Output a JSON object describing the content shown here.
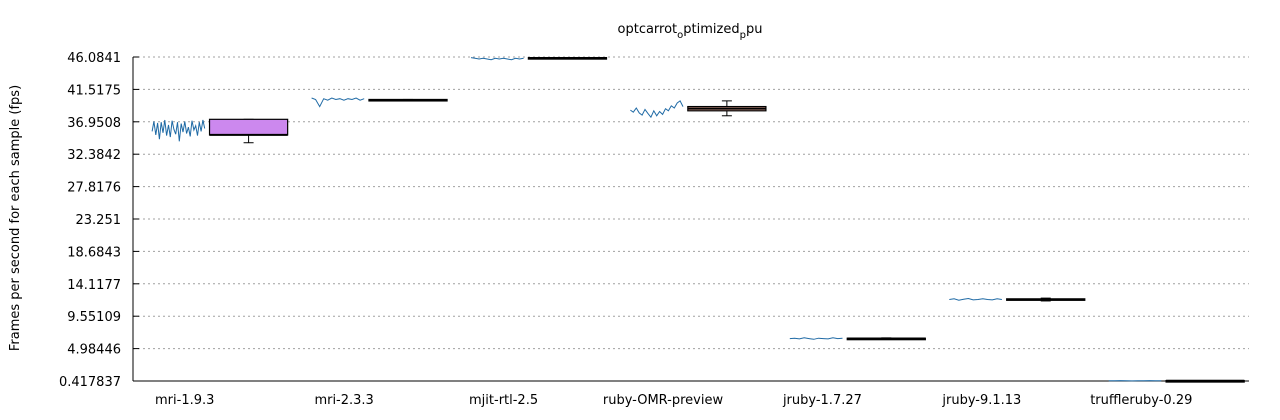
{
  "chart_data": {
    "type": "box",
    "title": "optcarrot",
    "title_sub1": "o",
    "title_mid": "ptimized",
    "title_sub2": "p",
    "title_end": "pu",
    "ylabel": "Frames per second for each sample (fps)",
    "ylim": [
      0.417837,
      46.0841
    ],
    "yticks": [
      "0.417837",
      "4.98446",
      "9.55109",
      "14.1177",
      "18.6843",
      "23.251",
      "27.8176",
      "32.3842",
      "36.9508",
      "41.5175",
      "46.0841"
    ],
    "grid": true,
    "categories": [
      "mri-1.9.3",
      "mri-2.3.3",
      "mjit-rtl-2.5",
      "ruby-OMR-preview",
      "jruby-1.7.27",
      "jruby-9.1.13",
      "truffleruby-0.29"
    ],
    "boxes": [
      {
        "name": "mri-1.9.3",
        "whisker_low": 34.0,
        "q1": 35.1,
        "median": 35.1,
        "q3": 37.3,
        "whisker_high": 37.3,
        "color": "#cc88ee"
      },
      {
        "name": "mri-2.3.3",
        "whisker_low": 39.9,
        "q1": 39.9,
        "median": 40.0,
        "q3": 40.1,
        "whisker_high": 40.1,
        "color": "#ffffff"
      },
      {
        "name": "mjit-rtl-2.5",
        "whisker_low": 45.8,
        "q1": 45.8,
        "median": 45.9,
        "q3": 46.0,
        "whisker_high": 46.0,
        "color": "#ffffff"
      },
      {
        "name": "ruby-OMR-preview",
        "whisker_low": 37.8,
        "q1": 38.5,
        "median": 38.8,
        "q3": 39.1,
        "whisker_high": 39.9,
        "color": "#e8a898"
      },
      {
        "name": "jruby-1.7.27",
        "whisker_low": 6.3,
        "q1": 6.35,
        "median": 6.4,
        "q3": 6.45,
        "whisker_high": 6.5,
        "color": "#ffffff"
      },
      {
        "name": "jruby-9.1.13",
        "whisker_low": 11.7,
        "q1": 11.8,
        "median": 11.9,
        "q3": 12.0,
        "whisker_high": 12.1,
        "color": "#ffffff"
      },
      {
        "name": "truffleruby-0.29",
        "whisker_low": 0.418,
        "q1": 0.418,
        "median": 0.45,
        "q3": 0.48,
        "whisker_high": 0.48,
        "color": "#ffffff"
      }
    ],
    "samples": [
      [
        35.6,
        37.0,
        35.1,
        36.8,
        34.5,
        36.9,
        35.4,
        37.2,
        35.0,
        36.5,
        34.8,
        37.1,
        35.9,
        35.2,
        36.9,
        34.2,
        36.7,
        35.5,
        37.0,
        35.3,
        36.2,
        34.9,
        37.1,
        35.8,
        36.4,
        35.0,
        36.9,
        35.6,
        37.2,
        36.0
      ],
      [
        40.3,
        40.1,
        39.1,
        40.2,
        40.0,
        40.3,
        40.1,
        40.2,
        40.0,
        40.2,
        40.1,
        40.3,
        40.0,
        40.2
      ],
      [
        46.0,
        45.9,
        45.8,
        45.9,
        45.8,
        45.7,
        45.9,
        45.8,
        45.9,
        45.8,
        45.7,
        45.9,
        45.8,
        45.9
      ],
      [
        38.6,
        38.3,
        38.9,
        38.2,
        37.9,
        38.7,
        38.1,
        37.6,
        38.5,
        37.8,
        38.4,
        38.0,
        38.8,
        38.5,
        39.2,
        38.9,
        39.6,
        39.9,
        39.1
      ],
      [
        6.4,
        6.45,
        6.35,
        6.5,
        6.4,
        6.3,
        6.45,
        6.4,
        6.35,
        6.5,
        6.4,
        6.45
      ],
      [
        11.9,
        12.0,
        11.8,
        11.95,
        12.05,
        11.85,
        11.9,
        12.0,
        11.9,
        11.85,
        12.0,
        11.9
      ],
      [
        0.46,
        0.44,
        0.47,
        0.45,
        0.43,
        0.46,
        0.45,
        0.47,
        0.44,
        0.46
      ]
    ]
  }
}
